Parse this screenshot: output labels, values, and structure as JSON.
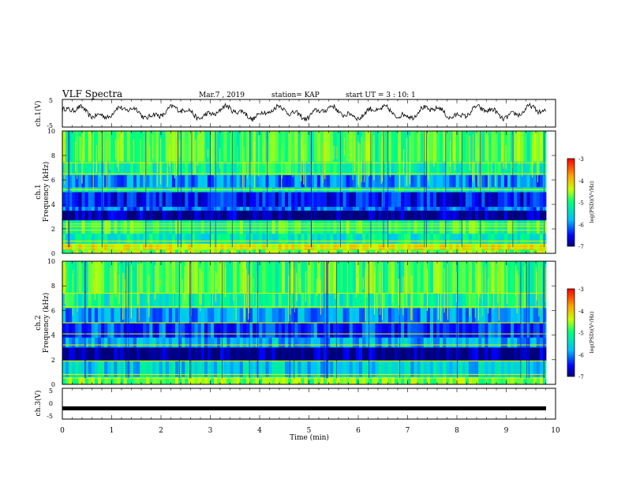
{
  "header": {
    "title": "VLF Spectra",
    "date": "Mar.7 , 2019",
    "station": "station= KAP",
    "start": "start UT =  3 : 10: 1"
  },
  "chart_data": [
    {
      "type": "line",
      "ylabel": "ch.1(V)",
      "ylim": [
        -5,
        5
      ],
      "yticks": [
        "5",
        "-5"
      ],
      "xlim": [
        0,
        10
      ],
      "description_values": {
        "mean": 0.3,
        "amplitude": 2.5
      }
    },
    {
      "type": "heatmap",
      "ylabel_top": "ch.1",
      "ylabel": "Frequency (kHz)",
      "ylim": [
        0,
        10
      ],
      "yticks": [
        "0",
        "2",
        "4",
        "6",
        "8",
        "10"
      ],
      "xlim": [
        0,
        10
      ],
      "colorbar": {
        "label": "log(PSD)(V²/Hz)",
        "ticks": [
          "-3",
          "-4",
          "-5",
          "-6",
          "-7"
        ],
        "range": [
          -7,
          -3
        ]
      },
      "bands": [
        {
          "f0": 0.0,
          "f1": 0.3,
          "level": -4.6
        },
        {
          "f0": 0.3,
          "f1": 0.8,
          "level": -4.2
        },
        {
          "f0": 0.8,
          "f1": 1.6,
          "level": -5.3
        },
        {
          "f0": 1.6,
          "f1": 2.7,
          "level": -5.0
        },
        {
          "f0": 2.7,
          "f1": 3.5,
          "level": -6.9
        },
        {
          "f0": 3.5,
          "f1": 3.8,
          "level": -6.1
        },
        {
          "f0": 3.8,
          "f1": 5.0,
          "level": -6.5
        },
        {
          "f0": 5.0,
          "f1": 5.4,
          "level": -5.4
        },
        {
          "f0": 5.4,
          "f1": 6.4,
          "level": -6.0
        },
        {
          "f0": 6.4,
          "f1": 7.5,
          "level": -5.2
        },
        {
          "f0": 7.5,
          "f1": 10.0,
          "level": -4.9
        }
      ],
      "lines": [
        0.45,
        0.7,
        1.0,
        1.9,
        2.2,
        2.4,
        5.2,
        6.5,
        7.4
      ]
    },
    {
      "type": "heatmap",
      "ylabel_top": "ch.2",
      "ylabel": "Frequency (kHz)",
      "ylim": [
        0,
        10
      ],
      "yticks": [
        "0",
        "2",
        "4",
        "6",
        "8",
        "10"
      ],
      "xlim": [
        0,
        10
      ],
      "colorbar": {
        "label": "log(PSD)(V²/Hz)",
        "ticks": [
          "-3",
          "-4",
          "-5",
          "-6",
          "-7"
        ],
        "range": [
          -7,
          -3
        ]
      },
      "bands": [
        {
          "f0": 0.0,
          "f1": 0.6,
          "level": -4.7
        },
        {
          "f0": 0.6,
          "f1": 1.9,
          "level": -5.6
        },
        {
          "f0": 1.9,
          "f1": 3.0,
          "level": -6.9
        },
        {
          "f0": 3.0,
          "f1": 3.8,
          "level": -5.8
        },
        {
          "f0": 3.8,
          "f1": 5.0,
          "level": -6.3
        },
        {
          "f0": 5.0,
          "f1": 6.2,
          "level": -5.9
        },
        {
          "f0": 6.2,
          "f1": 7.4,
          "level": -5.2
        },
        {
          "f0": 7.4,
          "f1": 10.0,
          "level": -4.9
        }
      ],
      "lines": [
        0.5,
        0.8,
        1.9,
        3.2,
        4.1,
        5.0,
        6.3,
        7.4
      ]
    },
    {
      "type": "line",
      "ylabel": "ch.3(V)",
      "ylim": [
        -5,
        5
      ],
      "yticks": [
        "5",
        "0",
        "-5"
      ],
      "xlim": [
        0,
        10
      ],
      "description_values": {
        "mean": -1.5,
        "amplitude": 0.0
      }
    }
  ],
  "xaxis": {
    "label": "Time (min)",
    "ticks": [
      "0",
      "1",
      "2",
      "3",
      "4",
      "5",
      "6",
      "7",
      "8",
      "9",
      "10"
    ]
  }
}
